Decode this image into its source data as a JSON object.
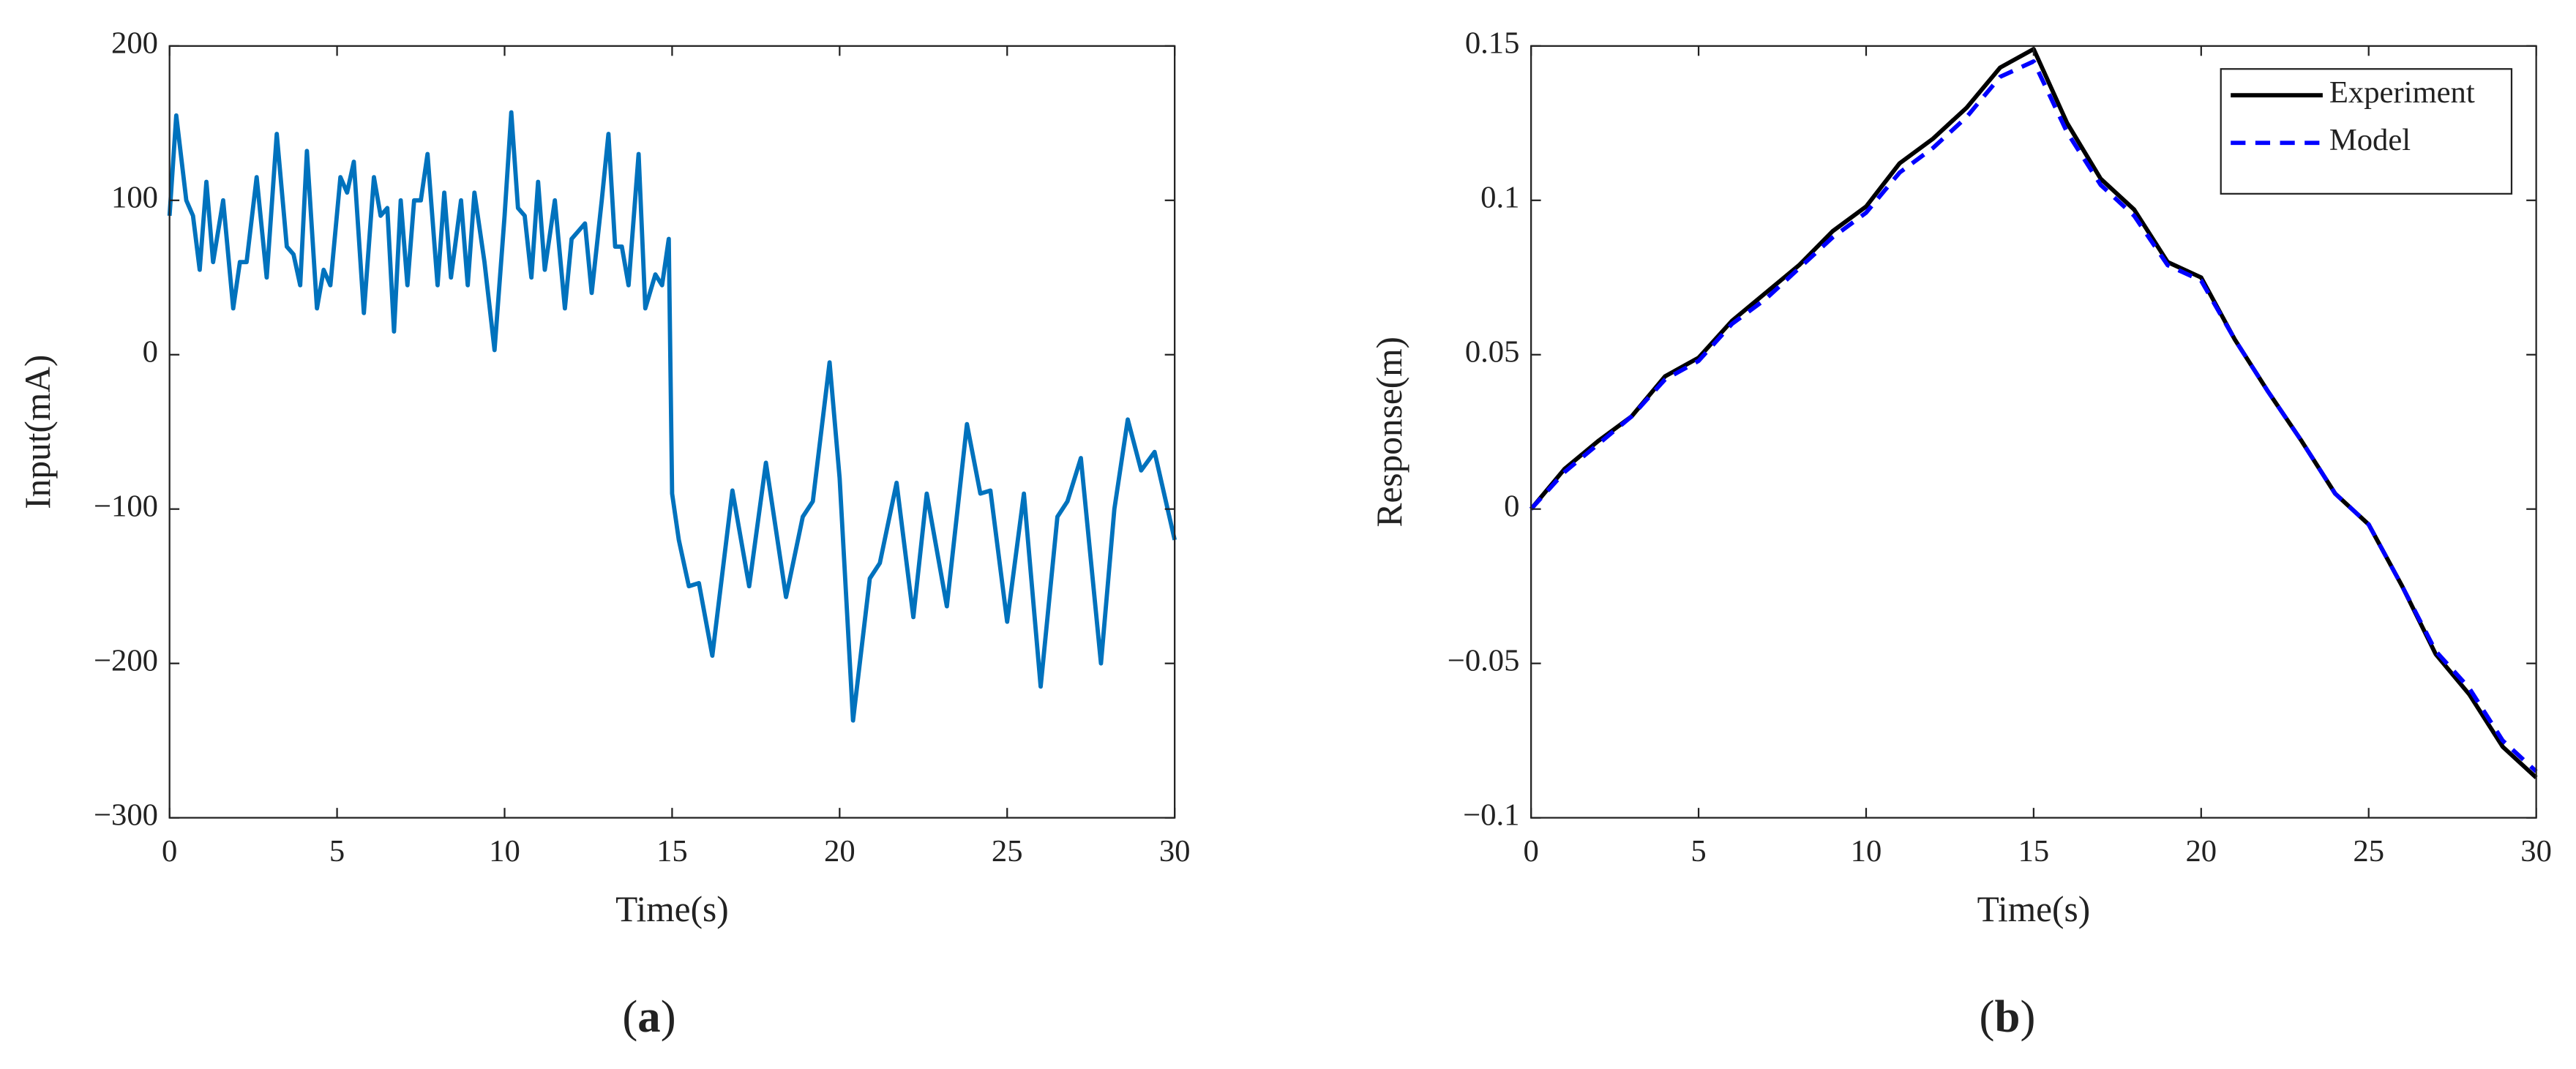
{
  "chart_data": [
    {
      "type": "line",
      "panel_label": "(a)",
      "xlabel": "Time(s)",
      "ylabel": "Input(mA)",
      "xlim": [
        0,
        30
      ],
      "ylim": [
        -300,
        200
      ],
      "xticks": [
        0,
        5,
        10,
        15,
        20,
        25,
        30
      ],
      "yticks": [
        {
          "value": -300,
          "label": "−300"
        },
        {
          "value": -200,
          "label": "−200"
        },
        {
          "value": -100,
          "label": "−100"
        },
        0,
        100,
        200
      ],
      "series": [
        {
          "color": "#0072bd",
          "dash": "solid",
          "x": [
            0,
            0.2,
            0.5,
            0.7,
            0.9,
            1.1,
            1.3,
            1.6,
            1.9,
            2.1,
            2.3,
            2.6,
            2.9,
            3.2,
            3.5,
            3.7,
            3.9,
            4.1,
            4.4,
            4.6,
            4.8,
            5.1,
            5.3,
            5.5,
            5.8,
            6.1,
            6.3,
            6.5,
            6.7,
            6.9,
            7.1,
            7.3,
            7.5,
            7.7,
            8.0,
            8.2,
            8.4,
            8.7,
            8.9,
            9.1,
            9.4,
            9.7,
            10.0,
            10.2,
            10.4,
            10.6,
            10.8,
            11.0,
            11.2,
            11.5,
            11.8,
            12.0,
            12.2,
            12.4,
            12.6,
            12.9,
            13.1,
            13.3,
            13.5,
            13.7,
            14.0,
            14.2,
            14.5,
            14.7,
            14.9,
            15.0,
            15.2,
            15.5,
            15.8,
            16.2,
            16.8,
            17.3,
            17.8,
            18.4,
            18.9,
            19.2,
            19.7,
            20.0,
            20.4,
            20.9,
            21.2,
            21.7,
            22.2,
            22.6,
            23.2,
            23.8,
            24.2,
            24.5,
            25.0,
            25.5,
            26.0,
            26.5,
            26.8,
            27.2,
            27.8,
            28.2,
            28.6,
            29.0,
            29.4,
            30.0
          ],
          "values": [
            90,
            155,
            100,
            90,
            55,
            112,
            60,
            100,
            30,
            60,
            60,
            115,
            50,
            143,
            70,
            65,
            45,
            132,
            30,
            55,
            45,
            115,
            105,
            125,
            27,
            115,
            90,
            95,
            15,
            100,
            45,
            100,
            100,
            130,
            45,
            105,
            50,
            100,
            45,
            105,
            60,
            3,
            90,
            157,
            95,
            90,
            50,
            112,
            55,
            100,
            30,
            75,
            80,
            85,
            40,
            100,
            143,
            70,
            70,
            45,
            130,
            30,
            52,
            45,
            75,
            -90,
            -120,
            -150,
            -148,
            -195,
            -88,
            -150,
            -70,
            -157,
            -105,
            -95,
            -5,
            -80,
            -237,
            -145,
            -135,
            -83,
            -170,
            -90,
            -163,
            -45,
            -90,
            -88,
            -173,
            -90,
            -215,
            -105,
            -95,
            -67,
            -200,
            -100,
            -42,
            -75,
            -63,
            -120
          ]
        }
      ]
    },
    {
      "type": "line",
      "panel_label": "(b)",
      "xlabel": "Time(s)",
      "ylabel": "Response(m)",
      "xlim": [
        0,
        30
      ],
      "ylim": [
        -0.1,
        0.15
      ],
      "xticks": [
        0,
        5,
        10,
        15,
        20,
        25,
        30
      ],
      "yticks": [
        {
          "value": -0.1,
          "label": "−0.1"
        },
        {
          "value": -0.05,
          "label": "−0.05"
        },
        0,
        0.05,
        0.1,
        0.15
      ],
      "legend": "upper right",
      "series": [
        {
          "name": "Experiment",
          "color": "#000000",
          "dash": "solid",
          "x": [
            0,
            1,
            2,
            3,
            4,
            5,
            6,
            7,
            8,
            9,
            10,
            11,
            12,
            13,
            14,
            15,
            16,
            17,
            18,
            19,
            20,
            21,
            22,
            23,
            24,
            25,
            26,
            27,
            28,
            29,
            30
          ],
          "values": [
            0,
            0.013,
            0.022,
            0.03,
            0.043,
            0.049,
            0.061,
            0.07,
            0.079,
            0.09,
            0.098,
            0.112,
            0.12,
            0.13,
            0.143,
            0.149,
            0.125,
            0.107,
            0.097,
            0.08,
            0.075,
            0.055,
            0.038,
            0.022,
            0.005,
            -0.005,
            -0.025,
            -0.047,
            -0.06,
            -0.077,
            -0.087
          ]
        },
        {
          "name": "Model",
          "color": "#0000ff",
          "dash": "dashed",
          "x": [
            0,
            1,
            2,
            3,
            4,
            5,
            6,
            7,
            8,
            9,
            10,
            11,
            12,
            13,
            14,
            15,
            16,
            17,
            18,
            19,
            20,
            21,
            22,
            23,
            24,
            25,
            26,
            27,
            28,
            29,
            30
          ],
          "values": [
            0,
            0.012,
            0.021,
            0.03,
            0.042,
            0.048,
            0.06,
            0.068,
            0.078,
            0.088,
            0.096,
            0.109,
            0.117,
            0.127,
            0.14,
            0.145,
            0.122,
            0.105,
            0.095,
            0.079,
            0.074,
            0.055,
            0.038,
            0.022,
            0.005,
            -0.005,
            -0.025,
            -0.046,
            -0.058,
            -0.075,
            -0.085
          ]
        }
      ]
    }
  ]
}
